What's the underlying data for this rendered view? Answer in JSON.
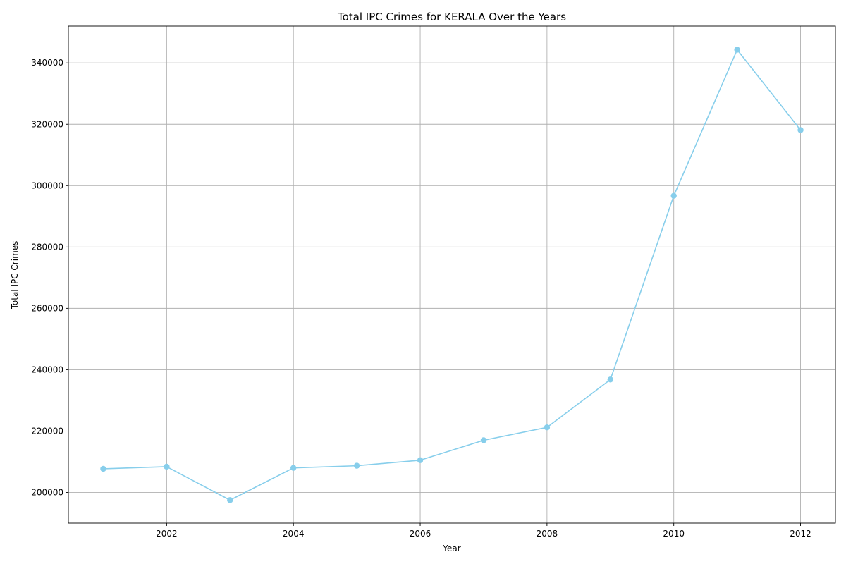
{
  "chart_data": {
    "type": "line",
    "title": "Total IPC Crimes for KERALA Over the Years",
    "xlabel": "Year",
    "ylabel": "Total IPC Crimes",
    "x": [
      2001,
      2002,
      2003,
      2004,
      2005,
      2006,
      2007,
      2008,
      2009,
      2010,
      2011,
      2012
    ],
    "series": [
      {
        "values": [
          207700,
          208400,
          197500,
          208000,
          208700,
          210500,
          217000,
          221200,
          236800,
          296700,
          344300,
          318100
        ]
      }
    ],
    "xlim": [
      2000.45,
      2012.55
    ],
    "ylim": [
      190000,
      352000
    ],
    "xticks": [
      2002,
      2004,
      2006,
      2008,
      2010,
      2012
    ],
    "yticks": [
      200000,
      220000,
      240000,
      260000,
      280000,
      300000,
      320000,
      340000
    ],
    "grid": true,
    "line_color": "#87ceeb",
    "marker": "circle"
  }
}
